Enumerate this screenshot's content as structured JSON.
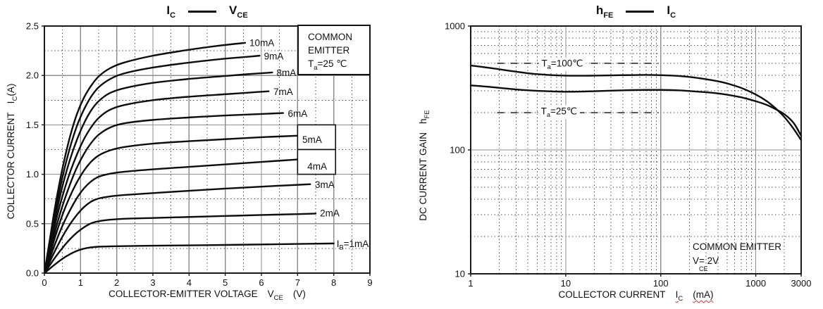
{
  "page": {
    "background": "#ffffff",
    "text_color": "#111111",
    "curve_color": "#0d0d0d",
    "grid_major_color": "#8f8f8f",
    "grid_minor_color": "#4a4a4a",
    "border_color": "#1a1a1a",
    "squiggle_color": "#e03131"
  },
  "charts": {
    "left": {
      "title_sym1": "I",
      "title_sub1": "C",
      "title_sym2": "V",
      "title_sub2": "CE",
      "ylabel_main": "COLLECTOR CURRENT",
      "ylabel_sym": "I",
      "ylabel_sub": "C",
      "ylabel_unit": "(A)",
      "xlabel_main": "COLLECTOR-EMITTER VOLTAGE",
      "xlabel_sym": "V",
      "xlabel_sub": "CE",
      "xlabel_unit": "(V)",
      "box_line1": "COMMON",
      "box_line2": "EMITTER",
      "box_temp_sym": "T",
      "box_temp_sub": "a",
      "box_temp_val": "=25 ℃"
    },
    "right": {
      "title_sym1": "h",
      "title_sub1": "FE",
      "title_sym2": "I",
      "title_sub2": "C",
      "ylabel_main": "DC CURRENT GAIN",
      "ylabel_sym": "h",
      "ylabel_sub": "FE",
      "xlabel_main": "COLLECTOR CURRENT",
      "xlabel_sym": "I",
      "xlabel_sub": "C",
      "xlabel_unit": "(mA)",
      "cond_line1": "COMMON EMITTER",
      "cond_sym": "V",
      "cond_eq": "=",
      "cond_sub": "CE",
      "cond_val": " 2V"
    }
  },
  "chart_data": [
    {
      "type": "line",
      "title": "IC — VCE",
      "xlabel": "COLLECTOR-EMITTER VOLTAGE VCE (V)",
      "ylabel": "COLLECTOR CURRENT IC (A)",
      "condition": "COMMON EMITTER Ta=25 ℃",
      "xscale": "linear",
      "yscale": "linear",
      "xlim": [
        0,
        9
      ],
      "ylim": [
        0,
        2.5
      ],
      "x_major": 1,
      "x_minor": 0.5,
      "y_major": 0.5,
      "y_minor": 0.25,
      "x_tick_decimals": 0,
      "y_tick_decimals": 1,
      "grid": "major-solid minor-dotted",
      "series": [
        {
          "name": "IB=10mA",
          "label": "10mA",
          "label_at": [
            5.67,
            2.33
          ],
          "points": [
            [
              0,
              0
            ],
            [
              0.15,
              0.34
            ],
            [
              0.3,
              0.68
            ],
            [
              0.5,
              1.06
            ],
            [
              0.7,
              1.37
            ],
            [
              0.9,
              1.61
            ],
            [
              1.1,
              1.78
            ],
            [
              1.3,
              1.9
            ],
            [
              1.5,
              1.99
            ],
            [
              1.8,
              2.07
            ],
            [
              2.2,
              2.13
            ],
            [
              3,
              2.2
            ],
            [
              4,
              2.26
            ],
            [
              4.8,
              2.3
            ],
            [
              5.55,
              2.33
            ]
          ]
        },
        {
          "name": "IB=9mA",
          "label": "9mA",
          "label_at": [
            6.07,
            2.195
          ],
          "points": [
            [
              0,
              0
            ],
            [
              0.15,
              0.31
            ],
            [
              0.3,
              0.62
            ],
            [
              0.5,
              0.97
            ],
            [
              0.7,
              1.26
            ],
            [
              0.9,
              1.49
            ],
            [
              1.1,
              1.66
            ],
            [
              1.3,
              1.79
            ],
            [
              1.5,
              1.88
            ],
            [
              1.8,
              1.96
            ],
            [
              2.2,
              2.02
            ],
            [
              3,
              2.08
            ],
            [
              4,
              2.13
            ],
            [
              5,
              2.17
            ],
            [
              5.5,
              2.185
            ],
            [
              5.95,
              2.2
            ]
          ]
        },
        {
          "name": "IB=8mA",
          "label": "8mA",
          "label_at": [
            6.42,
            2.025
          ],
          "points": [
            [
              0,
              0
            ],
            [
              0.15,
              0.28
            ],
            [
              0.3,
              0.56
            ],
            [
              0.5,
              0.88
            ],
            [
              0.7,
              1.14
            ],
            [
              0.9,
              1.35
            ],
            [
              1.1,
              1.52
            ],
            [
              1.3,
              1.65
            ],
            [
              1.5,
              1.74
            ],
            [
              1.8,
              1.82
            ],
            [
              2.2,
              1.87
            ],
            [
              3,
              1.925
            ],
            [
              4,
              1.965
            ],
            [
              5,
              1.995
            ],
            [
              5.7,
              2.015
            ],
            [
              6.3,
              2.03
            ]
          ]
        },
        {
          "name": "IB=7mA",
          "label": "7mA",
          "label_at": [
            6.33,
            1.835
          ],
          "points": [
            [
              0,
              0
            ],
            [
              0.15,
              0.25
            ],
            [
              0.3,
              0.5
            ],
            [
              0.5,
              0.78
            ],
            [
              0.7,
              1.01
            ],
            [
              0.9,
              1.2
            ],
            [
              1.1,
              1.36
            ],
            [
              1.3,
              1.48
            ],
            [
              1.5,
              1.57
            ],
            [
              1.8,
              1.65
            ],
            [
              2.2,
              1.7
            ],
            [
              3,
              1.75
            ],
            [
              4,
              1.785
            ],
            [
              5,
              1.81
            ],
            [
              5.6,
              1.825
            ],
            [
              6.2,
              1.84
            ]
          ]
        },
        {
          "name": "IB=6mA",
          "label": "6mA",
          "label_at": [
            6.73,
            1.615
          ],
          "points": [
            [
              0,
              0
            ],
            [
              0.15,
              0.215
            ],
            [
              0.3,
              0.43
            ],
            [
              0.5,
              0.68
            ],
            [
              0.7,
              0.89
            ],
            [
              0.9,
              1.07
            ],
            [
              1.1,
              1.21
            ],
            [
              1.3,
              1.32
            ],
            [
              1.5,
              1.4
            ],
            [
              1.8,
              1.47
            ],
            [
              2.2,
              1.515
            ],
            [
              3,
              1.55
            ],
            [
              4,
              1.575
            ],
            [
              5,
              1.595
            ],
            [
              6,
              1.61
            ],
            [
              6.6,
              1.62
            ]
          ]
        },
        {
          "name": "IB=5mA",
          "points": [
            [
              0,
              0
            ],
            [
              0.15,
              0.185
            ],
            [
              0.3,
              0.37
            ],
            [
              0.5,
              0.59
            ],
            [
              0.7,
              0.77
            ],
            [
              0.9,
              0.92
            ],
            [
              1.1,
              1.04
            ],
            [
              1.3,
              1.13
            ],
            [
              1.5,
              1.19
            ],
            [
              1.8,
              1.24
            ],
            [
              2.2,
              1.275
            ],
            [
              3,
              1.31
            ],
            [
              4,
              1.335
            ],
            [
              5,
              1.355
            ],
            [
              6,
              1.375
            ],
            [
              7,
              1.39
            ]
          ]
        },
        {
          "name": "IB=4mA",
          "points": [
            [
              0,
              0
            ],
            [
              0.15,
              0.15
            ],
            [
              0.3,
              0.3
            ],
            [
              0.5,
              0.48
            ],
            [
              0.7,
              0.63
            ],
            [
              0.9,
              0.76
            ],
            [
              1.1,
              0.86
            ],
            [
              1.3,
              0.93
            ],
            [
              1.5,
              0.975
            ],
            [
              1.8,
              1.005
            ],
            [
              2.2,
              1.025
            ],
            [
              3,
              1.05
            ],
            [
              4,
              1.075
            ],
            [
              5,
              1.1
            ],
            [
              6,
              1.125
            ],
            [
              7,
              1.15
            ]
          ]
        },
        {
          "name": "IB=3mA",
          "label": "3mA",
          "label_at": [
            7.48,
            0.895
          ],
          "points": [
            [
              0,
              0
            ],
            [
              0.15,
              0.115
            ],
            [
              0.3,
              0.23
            ],
            [
              0.5,
              0.37
            ],
            [
              0.7,
              0.49
            ],
            [
              0.9,
              0.59
            ],
            [
              1.1,
              0.67
            ],
            [
              1.3,
              0.725
            ],
            [
              1.5,
              0.755
            ],
            [
              1.8,
              0.775
            ],
            [
              2.2,
              0.79
            ],
            [
              3,
              0.81
            ],
            [
              4,
              0.833
            ],
            [
              5,
              0.855
            ],
            [
              6,
              0.875
            ],
            [
              7,
              0.893
            ],
            [
              7.35,
              0.9
            ]
          ]
        },
        {
          "name": "IB=2mA",
          "label": "2mA",
          "label_at": [
            7.62,
            0.605
          ],
          "points": [
            [
              0,
              0
            ],
            [
              0.15,
              0.08
            ],
            [
              0.3,
              0.16
            ],
            [
              0.5,
              0.255
            ],
            [
              0.7,
              0.34
            ],
            [
              0.9,
              0.41
            ],
            [
              1.1,
              0.465
            ],
            [
              1.3,
              0.505
            ],
            [
              1.5,
              0.525
            ],
            [
              1.8,
              0.54
            ],
            [
              2.2,
              0.55
            ],
            [
              3,
              0.558
            ],
            [
              4,
              0.568
            ],
            [
              5,
              0.578
            ],
            [
              6,
              0.588
            ],
            [
              7,
              0.597
            ],
            [
              7.5,
              0.602
            ]
          ]
        },
        {
          "name": "IB=1mA",
          "label": {
            "pre": "I",
            "sub": "B",
            "post": "=1mA"
          },
          "label_at": [
            8.08,
            0.295
          ],
          "points": [
            [
              0,
              0
            ],
            [
              0.15,
              0.045
            ],
            [
              0.3,
              0.09
            ],
            [
              0.5,
              0.145
            ],
            [
              0.7,
              0.19
            ],
            [
              0.9,
              0.225
            ],
            [
              1.1,
              0.248
            ],
            [
              1.3,
              0.261
            ],
            [
              1.5,
              0.267
            ],
            [
              2,
              0.272
            ],
            [
              3,
              0.277
            ],
            [
              4,
              0.281
            ],
            [
              5,
              0.285
            ],
            [
              6,
              0.29
            ],
            [
              7,
              0.295
            ],
            [
              8,
              0.3
            ]
          ]
        }
      ],
      "label_boxes": [
        {
          "x": [
            7,
            8.05
          ],
          "y": [
            1.25,
            1.5
          ],
          "text": "5mA",
          "text_at": [
            7.13,
            1.35
          ]
        },
        {
          "x": [
            7,
            8.05
          ],
          "y": [
            1.0,
            1.25
          ],
          "text": "4mA",
          "text_at": [
            7.27,
            1.08
          ]
        }
      ]
    },
    {
      "type": "line",
      "title": "hFE — IC",
      "xlabel": "COLLECTOR CURRENT IC (mA)",
      "ylabel": "DC CURRENT GAIN hFE",
      "condition": "COMMON EMITTER VCE= 2V",
      "xscale": "log",
      "yscale": "log",
      "xlim": [
        1,
        3000
      ],
      "ylim": [
        10,
        1000
      ],
      "x_tick_labels": [
        "1",
        "10",
        "100",
        "1000",
        "3000"
      ],
      "y_tick_labels": [
        "10",
        "100",
        "1000"
      ],
      "grid": "decade-solid minor-dotted",
      "dashed_ref_lines": [
        {
          "y": 500,
          "x": [
            1.9,
            95
          ]
        },
        {
          "y": 200,
          "x": [
            1.9,
            95
          ]
        }
      ],
      "series": [
        {
          "name": "Ta=100C",
          "label": {
            "pre": "T",
            "sub": "a",
            "post": "=100℃"
          },
          "label_center": [
            9.2,
            500
          ],
          "points": [
            [
              1,
              480
            ],
            [
              1.5,
              462
            ],
            [
              2,
              448
            ],
            [
              3,
              428
            ],
            [
              4,
              416
            ],
            [
              5,
              409
            ],
            [
              7,
              402
            ],
            [
              10,
              398
            ],
            [
              15,
              397
            ],
            [
              20,
              398
            ],
            [
              30,
              400
            ],
            [
              50,
              402
            ],
            [
              70,
              403
            ],
            [
              100,
              401
            ],
            [
              150,
              396
            ],
            [
              200,
              388
            ],
            [
              300,
              372
            ],
            [
              400,
              358
            ],
            [
              500,
              344
            ],
            [
              700,
              317
            ],
            [
              1000,
              280
            ],
            [
              1300,
              248
            ],
            [
              1600,
              218
            ],
            [
              2000,
              184
            ],
            [
              2500,
              148
            ],
            [
              3000,
              120
            ]
          ]
        },
        {
          "name": "Ta=25C",
          "label": {
            "pre": "T",
            "sub": "a",
            "post": "=25℃"
          },
          "label_center": [
            8.5,
            205
          ],
          "points": [
            [
              1,
              332
            ],
            [
              1.5,
              324
            ],
            [
              2,
              317
            ],
            [
              3,
              308
            ],
            [
              4,
              303
            ],
            [
              5,
              300
            ],
            [
              7,
              297
            ],
            [
              10,
              295
            ],
            [
              15,
              296
            ],
            [
              20,
              298
            ],
            [
              30,
              301
            ],
            [
              50,
              304
            ],
            [
              70,
              305
            ],
            [
              100,
              305
            ],
            [
              150,
              303
            ],
            [
              200,
              299
            ],
            [
              300,
              292
            ],
            [
              400,
              286
            ],
            [
              500,
              279
            ],
            [
              700,
              266
            ],
            [
              1000,
              247
            ],
            [
              1300,
              231
            ],
            [
              1600,
              214
            ],
            [
              2000,
              194
            ],
            [
              2500,
              165
            ],
            [
              3000,
              130
            ]
          ]
        }
      ]
    }
  ]
}
